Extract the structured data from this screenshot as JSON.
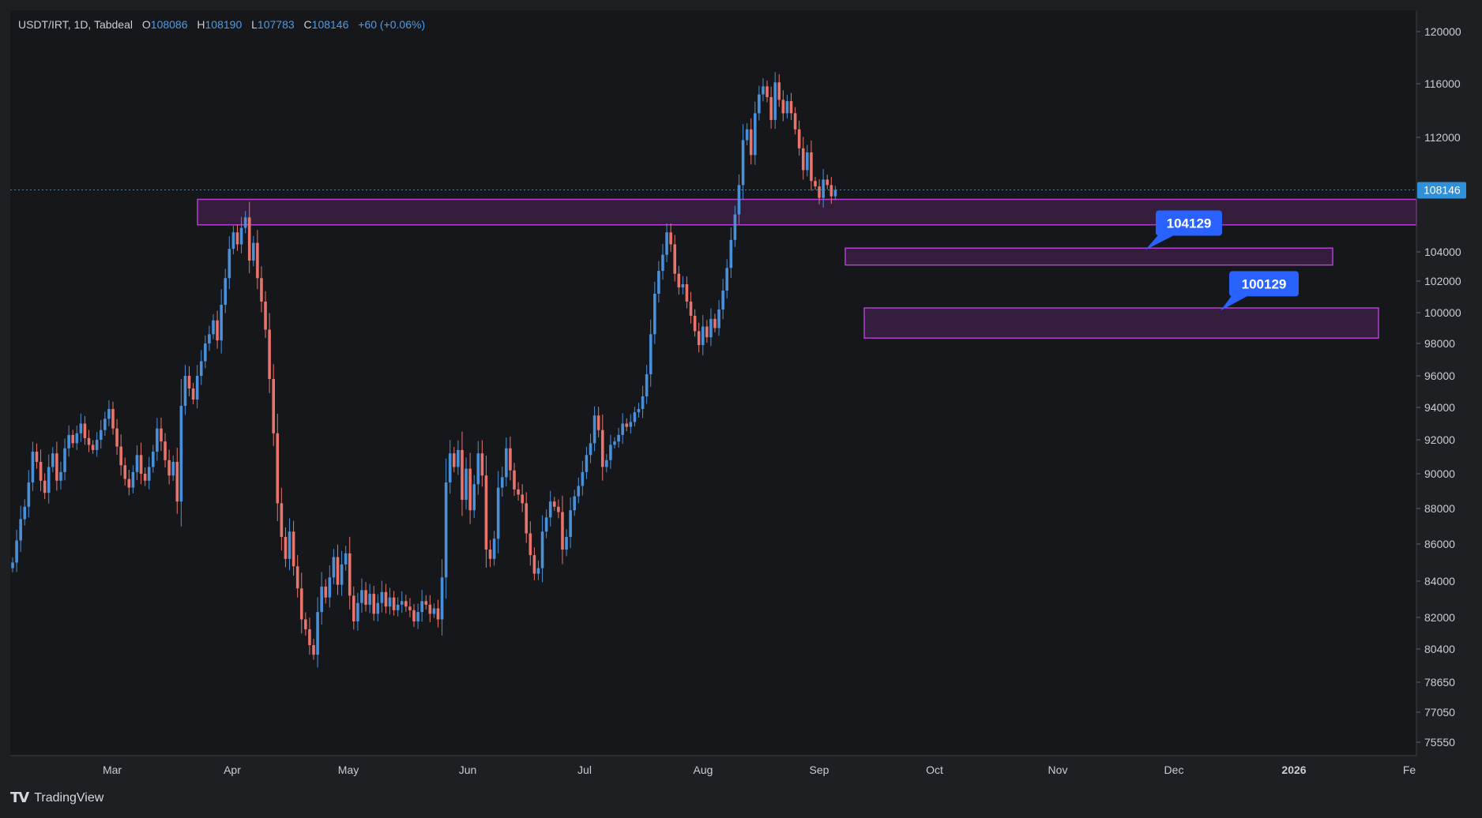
{
  "legend": {
    "symbol": "USDT/IRT, 1D, Tabdeal",
    "open_key": "O",
    "open": "108086",
    "high_key": "H",
    "high": "108190",
    "low_key": "L",
    "low": "107783",
    "close_key": "C",
    "close": "108146",
    "change": "+60 (+0.06%)"
  },
  "footer": {
    "brand": "TradingView",
    "logo_icon": "tradingview-logo-icon"
  },
  "colors": {
    "up": "#4a90d9",
    "down": "#e8746b",
    "zone_fill": "#3b1e44",
    "zone_stroke": "#b43fd0",
    "callout": "#2962ff",
    "background": "#16171b"
  },
  "chart_data": {
    "type": "candlestick",
    "title": "",
    "xlabel": "",
    "ylabel": "",
    "x_ticks": [
      "Mar",
      "Apr",
      "May",
      "Jun",
      "Jul",
      "Aug",
      "Sep",
      "Oct",
      "Nov",
      "Dec",
      "2026",
      "Fe"
    ],
    "y_ticks": [
      120000,
      116000,
      112000,
      104000,
      102000,
      100000,
      98000,
      96000,
      94000,
      92000,
      90000,
      88000,
      86000,
      84000,
      82000,
      80400,
      78650,
      77050,
      75550
    ],
    "y_tick_labels": [
      "120000",
      "116000",
      "112000",
      "104000",
      "102000",
      "100000",
      "98000",
      "96000",
      "94000",
      "92000",
      "90000",
      "88000",
      "86000",
      "84000",
      "82000",
      "80400",
      "78650",
      "77050",
      "75550"
    ],
    "ylim": [
      75000,
      121500
    ],
    "last_price": 108146,
    "last_price_label": "108146",
    "zones": [
      {
        "from": 105800,
        "to": 107500
      },
      {
        "from": 103100,
        "to": 104250
      },
      {
        "from": 98350,
        "to": 100300
      }
    ],
    "callouts": [
      {
        "label": "104129",
        "value": 104129
      },
      {
        "label": "100129",
        "value": 100129
      }
    ],
    "closes": [
      85000,
      86200,
      87400,
      88100,
      89500,
      91300,
      90700,
      89600,
      88900,
      90400,
      91200,
      89600,
      90100,
      91500,
      92300,
      91800,
      92400,
      93000,
      92100,
      91700,
      91400,
      92000,
      92600,
      93300,
      93900,
      92700,
      91600,
      90500,
      89700,
      89200,
      90100,
      91100,
      90000,
      89600,
      90400,
      91300,
      92700,
      91900,
      90800,
      89900,
      90700,
      88400,
      94100,
      96000,
      95200,
      94500,
      96000,
      96900,
      98000,
      98600,
      99500,
      98200,
      100500,
      102200,
      104200,
      105300,
      104500,
      105600,
      106300,
      103400,
      104600,
      102200,
      100700,
      98900,
      95800,
      92400,
      88300,
      86400,
      85200,
      86700,
      84800,
      83600,
      81900,
      81400,
      80600,
      80100,
      82300,
      83700,
      83100,
      84200,
      85300,
      83800,
      84900,
      85500,
      83200,
      81800,
      82800,
      83500,
      82700,
      83300,
      82200,
      82800,
      83400,
      82600,
      83100,
      82400,
      82700,
      82900,
      82600,
      82400,
      81800,
      82300,
      82900,
      82700,
      82200,
      82500,
      81900,
      84200,
      89500,
      91200,
      90400,
      91400,
      88500,
      90300,
      87900,
      89400,
      91200,
      89900,
      85700,
      85200,
      86300,
      89200,
      89800,
      91500,
      90200,
      89100,
      88800,
      88300,
      86600,
      85400,
      84400,
      84700,
      86700,
      87500,
      88400,
      88100,
      87800,
      85700,
      86400,
      87900,
      88700,
      89300,
      90100,
      91100,
      91800,
      93500,
      92600,
      90400,
      90800,
      91700,
      91900,
      92300,
      93000,
      92800,
      93100,
      93700,
      93900,
      94700,
      96100,
      98600,
      101200,
      102700,
      103800,
      105300,
      104500,
      102500,
      101600,
      101800,
      100700,
      99800,
      98800,
      97900,
      99100,
      98400,
      99600,
      99000,
      100200,
      101400,
      102900,
      104800,
      106500,
      108500,
      111800,
      112600,
      110700,
      113800,
      115200,
      115800,
      115000,
      113300,
      116100,
      114800,
      113800,
      114700,
      113800,
      112600,
      111200,
      109600,
      110900,
      108800,
      108400,
      107600,
      108900,
      108500,
      107700,
      108146
    ]
  }
}
